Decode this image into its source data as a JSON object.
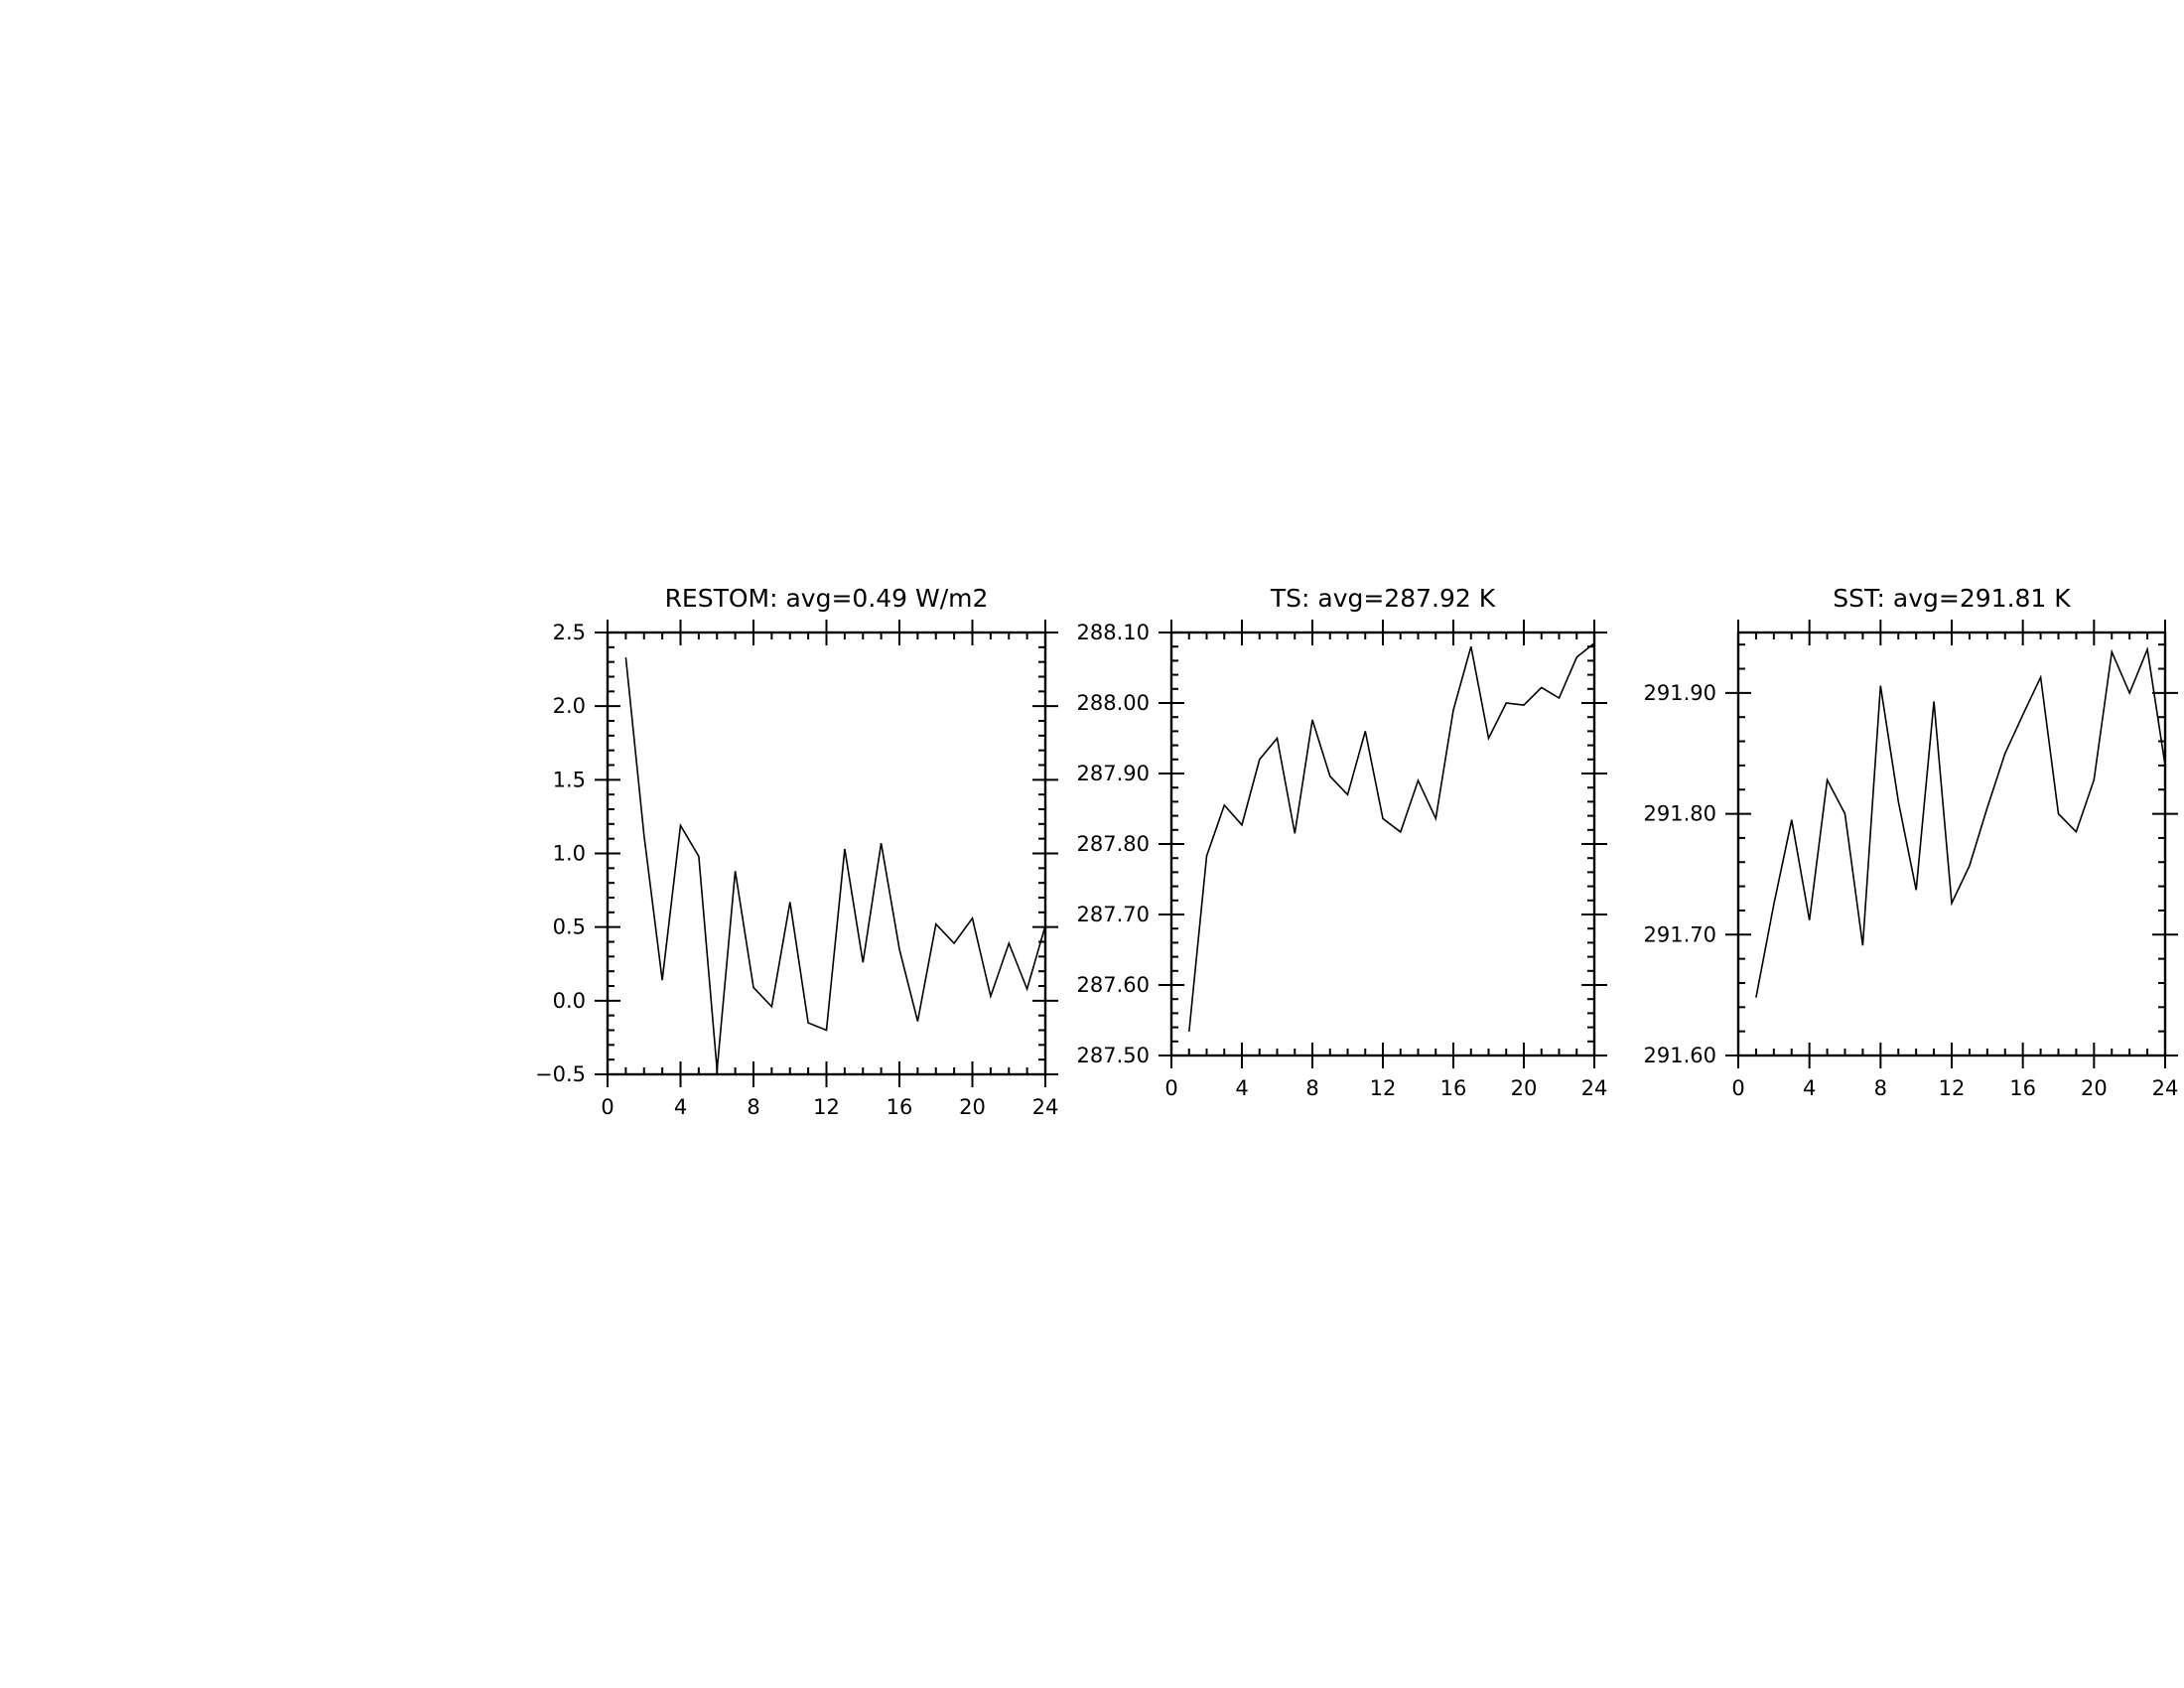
{
  "chart_data": [
    {
      "type": "line",
      "title": "RESTOM: avg=0.49 W/m2",
      "xlabel": "",
      "ylabel": "",
      "xlim": [
        0,
        24
      ],
      "ylim": [
        -0.5,
        2.5
      ],
      "xticks": [
        0,
        4,
        8,
        12,
        16,
        20,
        24
      ],
      "xtick_labels": [
        "0",
        "4",
        "8",
        "12",
        "16",
        "20",
        "24"
      ],
      "xminor_step": 1,
      "yticks": [
        -0.5,
        0.0,
        0.5,
        1.0,
        1.5,
        2.0,
        2.5
      ],
      "ytick_labels": [
        "−0.5",
        "0.0",
        "0.5",
        "1.0",
        "1.5",
        "2.0",
        "2.5"
      ],
      "yminor_step": 0.1,
      "grid": false,
      "color": "#000000",
      "x": [
        1,
        2,
        3,
        4,
        5,
        6,
        7,
        8,
        9,
        10,
        11,
        12,
        13,
        14,
        15,
        16,
        17,
        18,
        19,
        20,
        21,
        22,
        23,
        24
      ],
      "series": [
        {
          "values": [
            2.33,
            1.12,
            0.14,
            1.19,
            0.98,
            -0.47,
            0.88,
            0.09,
            -0.04,
            0.67,
            -0.15,
            -0.2,
            1.03,
            0.26,
            1.07,
            0.35,
            -0.14,
            0.52,
            0.39,
            0.56,
            0.03,
            0.39,
            0.08,
            0.51
          ]
        }
      ]
    },
    {
      "type": "line",
      "title": "TS: avg=287.92 K",
      "xlabel": "",
      "ylabel": "",
      "xlim": [
        0,
        24
      ],
      "ylim": [
        287.5,
        288.1
      ],
      "xticks": [
        0,
        4,
        8,
        12,
        16,
        20,
        24
      ],
      "xtick_labels": [
        "0",
        "4",
        "8",
        "12",
        "16",
        "20",
        "24"
      ],
      "xminor_step": 1,
      "yticks": [
        287.5,
        287.6,
        287.7,
        287.8,
        287.9,
        288.0,
        288.1
      ],
      "ytick_labels": [
        "287.50",
        "287.60",
        "287.70",
        "287.80",
        "287.90",
        "288.00",
        "288.10"
      ],
      "yminor_step": 0.02,
      "grid": false,
      "color": "#000000",
      "x": [
        1,
        2,
        3,
        4,
        5,
        6,
        7,
        8,
        9,
        10,
        11,
        12,
        13,
        14,
        15,
        16,
        17,
        18,
        19,
        20,
        21,
        22,
        23,
        24
      ],
      "series": [
        {
          "values": [
            287.534,
            287.783,
            287.855,
            287.827,
            287.92,
            287.95,
            287.815,
            287.976,
            287.896,
            287.87,
            287.96,
            287.836,
            287.817,
            287.89,
            287.836,
            287.99,
            288.08,
            287.95,
            288.0,
            287.997,
            288.022,
            288.007,
            288.065,
            288.085
          ]
        }
      ]
    },
    {
      "type": "line",
      "title": "SST: avg=291.81 K",
      "xlabel": "",
      "ylabel": "",
      "xlim": [
        0,
        24
      ],
      "ylim": [
        291.6,
        291.95
      ],
      "xticks": [
        0,
        4,
        8,
        12,
        16,
        20,
        24
      ],
      "xtick_labels": [
        "0",
        "4",
        "8",
        "12",
        "16",
        "20",
        "24"
      ],
      "xminor_step": 1,
      "yticks": [
        291.6,
        291.7,
        291.8,
        291.9
      ],
      "ytick_labels": [
        "291.60",
        "291.70",
        "291.80",
        "291.90"
      ],
      "yminor_step": 0.02,
      "grid": false,
      "color": "#000000",
      "x": [
        1,
        2,
        3,
        4,
        5,
        6,
        7,
        8,
        9,
        10,
        11,
        12,
        13,
        14,
        15,
        16,
        17,
        18,
        19,
        20,
        21,
        22,
        23,
        24
      ],
      "series": [
        {
          "values": [
            291.648,
            291.725,
            291.795,
            291.712,
            291.828,
            291.8,
            291.691,
            291.906,
            291.81,
            291.737,
            291.893,
            291.726,
            291.757,
            291.805,
            291.85,
            291.882,
            291.913,
            291.8,
            291.785,
            291.828,
            291.934,
            291.9,
            291.936,
            291.84
          ]
        }
      ]
    }
  ]
}
